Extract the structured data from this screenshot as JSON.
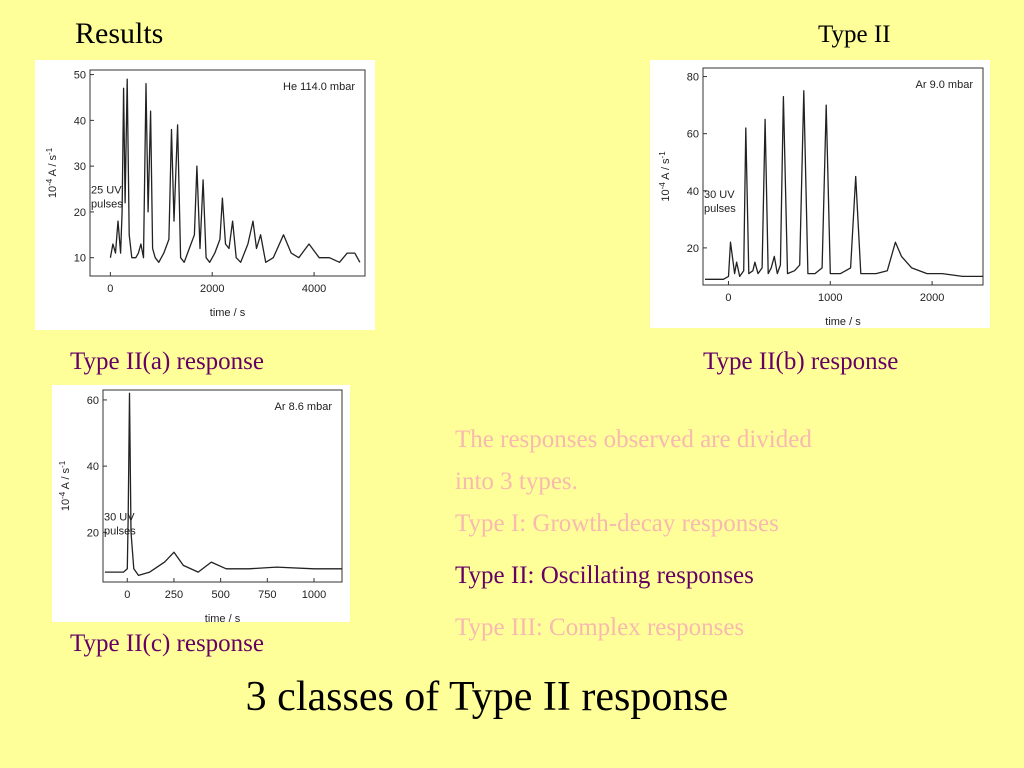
{
  "title": "Results",
  "subtitle": "Type II",
  "captions": [
    "Type II(a) response",
    "Type II(b) response",
    "Type II(c) response"
  ],
  "text": {
    "lines": [
      "The responses observed are divided",
      "into 3 types.",
      "Type I: Growth-decay responses",
      "Type II: Oscillating responses",
      "Type III: Complex responses"
    ]
  },
  "heading": "3 classes of Type II response",
  "chart_data": [
    {
      "type": "line",
      "label": "He 114.0 mbar",
      "annotation": [
        "25 UV",
        "pulses"
      ],
      "xlabel": "time / s",
      "ylabel": {
        "base": "10",
        "exp": "-4",
        "unit": " A / s",
        "unit_exp": "-1"
      },
      "xlim": [
        -400,
        5000
      ],
      "xticks": [
        0,
        2000,
        4000
      ],
      "ylim": [
        6,
        51
      ],
      "yticks": [
        10,
        20,
        30,
        40,
        50
      ],
      "color": "#222222",
      "x": [
        0,
        50,
        100,
        150,
        200,
        230,
        260,
        290,
        330,
        370,
        420,
        500,
        550,
        600,
        650,
        700,
        740,
        790,
        830,
        880,
        950,
        1050,
        1150,
        1200,
        1250,
        1320,
        1380,
        1450,
        1550,
        1650,
        1700,
        1760,
        1820,
        1880,
        1950,
        2050,
        2150,
        2200,
        2260,
        2330,
        2400,
        2470,
        2560,
        2700,
        2800,
        2870,
        2950,
        3050,
        3200,
        3400,
        3550,
        3700,
        3900,
        4100,
        4300,
        4500,
        4650,
        4800,
        4900
      ],
      "values": [
        10,
        13,
        11,
        18,
        11,
        20,
        47,
        22,
        49,
        15,
        10,
        10,
        11,
        13,
        10,
        48,
        20,
        42,
        12,
        10,
        9,
        11,
        14,
        38,
        18,
        39,
        10,
        9,
        12,
        15,
        30,
        12,
        27,
        10,
        9,
        11,
        14,
        23,
        13,
        12,
        18,
        10,
        9,
        13,
        18,
        12,
        15,
        9,
        10,
        15,
        11,
        10,
        13,
        10,
        10,
        9,
        11,
        11,
        9
      ]
    },
    {
      "type": "line",
      "label": "Ar 9.0 mbar",
      "annotation": [
        "30 UV",
        "pulses"
      ],
      "xlabel": "time / s",
      "ylabel": {
        "base": "10",
        "exp": "-4",
        "unit": " A / s",
        "unit_exp": "-1"
      },
      "xlim": [
        -250,
        2500
      ],
      "xticks": [
        0,
        1000,
        2000
      ],
      "ylim": [
        7,
        83
      ],
      "yticks": [
        20,
        40,
        60,
        80
      ],
      "color": "#222222",
      "x": [
        -230,
        -50,
        0,
        20,
        60,
        80,
        110,
        150,
        170,
        200,
        240,
        260,
        290,
        330,
        360,
        390,
        420,
        450,
        480,
        510,
        540,
        580,
        650,
        700,
        740,
        780,
        850,
        920,
        960,
        1000,
        1100,
        1200,
        1250,
        1300,
        1450,
        1560,
        1640,
        1700,
        1800,
        1950,
        2100,
        2300,
        2500
      ],
      "values": [
        9,
        9,
        10,
        22,
        11,
        15,
        10,
        12,
        62,
        11,
        12,
        15,
        11,
        13,
        65,
        11,
        13,
        17,
        11,
        14,
        73,
        11,
        12,
        14,
        75,
        11,
        11,
        13,
        70,
        11,
        11,
        13,
        45,
        11,
        11,
        12,
        22,
        17,
        13,
        11,
        11,
        10,
        10
      ]
    },
    {
      "type": "line",
      "label": "Ar 8.6 mbar",
      "annotation": [
        "30 UV",
        "pulses"
      ],
      "xlabel": "time / s",
      "ylabel": {
        "base": "10",
        "exp": "-4",
        "unit": " A / s",
        "unit_exp": "-1"
      },
      "xlim": [
        -130,
        1150
      ],
      "xticks": [
        0,
        250,
        500,
        750,
        1000
      ],
      "ylim": [
        5,
        63
      ],
      "yticks": [
        20,
        40,
        60
      ],
      "color": "#222222",
      "x": [
        -120,
        -20,
        0,
        5,
        12,
        20,
        35,
        60,
        120,
        200,
        250,
        300,
        380,
        450,
        530,
        650,
        800,
        1000,
        1150
      ],
      "values": [
        8,
        8,
        9,
        25,
        62,
        20,
        9,
        7,
        8,
        11,
        14,
        10,
        8,
        11,
        9,
        9,
        9.5,
        9,
        9
      ]
    }
  ]
}
